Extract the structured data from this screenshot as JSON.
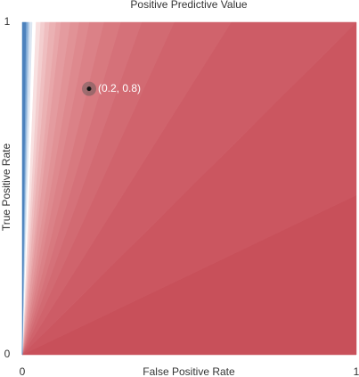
{
  "chart_data": {
    "type": "contour",
    "title": "Positive Predictive Value",
    "x_label": "False Positive Rate",
    "y_label": "True Positive Rate",
    "xlim": [
      0,
      1
    ],
    "ylim": [
      0,
      1
    ],
    "xticks": [
      0,
      1
    ],
    "yticks": [
      0,
      1
    ],
    "boundary_slopes": [
      0.48,
      1,
      1.6,
      2.2,
      2.8,
      3.4,
      4.1,
      5,
      5.9,
      7,
      8.7,
      10,
      12.4,
      15,
      18.6,
      25,
      34,
      48,
      65,
      95
    ],
    "band_colors": [
      "#c8505a",
      "#cb5660",
      "#cd5c66",
      "#d0636c",
      "#d26a72",
      "#d57179",
      "#d8797f",
      "#db8187",
      "#de898e",
      "#e19296",
      "#e49b9f",
      "#e8a6a9",
      "#ebb1b3",
      "#efbec0",
      "#f3cdce",
      "#f8e0e0",
      "#ffffff",
      "#dbe6f2",
      "#a9c6e4",
      "#7aa6d3",
      "#4d82bd"
    ],
    "point": {
      "x": 0.2,
      "y": 0.8,
      "label": "(0.2, 0.8)"
    }
  }
}
